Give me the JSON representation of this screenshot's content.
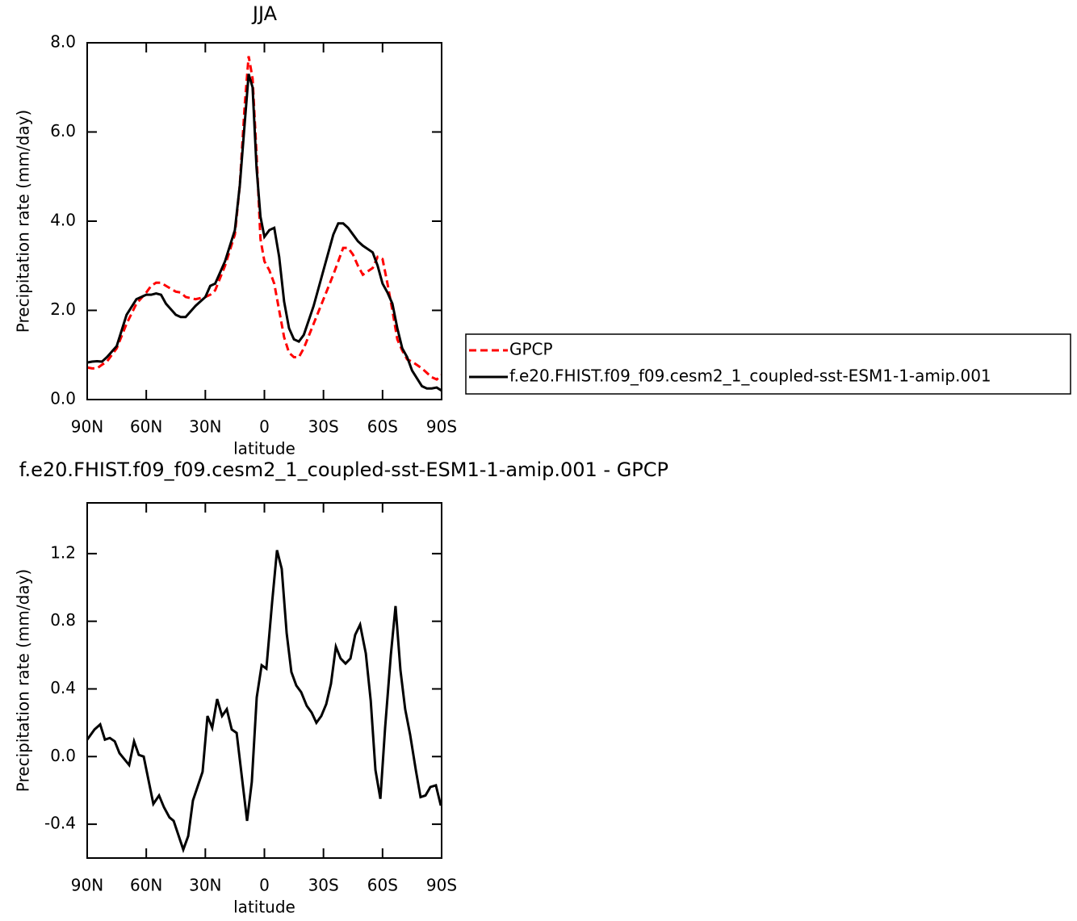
{
  "chart_data": [
    {
      "type": "line",
      "title": "JJA",
      "xlabel": "latitude",
      "ylabel": "Precipitation rate (mm/day)",
      "x": [
        90,
        87.5,
        85,
        82.5,
        80,
        75,
        70,
        65,
        60,
        57.5,
        55,
        52.5,
        50,
        45,
        42.5,
        40,
        35,
        30,
        27.5,
        25,
        20,
        15,
        12.5,
        10,
        8,
        6,
        4,
        2,
        0,
        -2.5,
        -5,
        -7.5,
        -10,
        -12.5,
        -15,
        -17.5,
        -20,
        -25,
        -30,
        -35,
        -37.5,
        -40,
        -42.5,
        -45,
        -47.5,
        -50,
        -55,
        -57.5,
        -60,
        -62.5,
        -65,
        -67.5,
        -70,
        -72.5,
        -75,
        -80,
        -82.5,
        -85,
        -87.5,
        -90
      ],
      "series": [
        {
          "name": "GPCP",
          "color": "#ff0000",
          "linestyle": "dashed",
          "values": [
            0.72,
            0.7,
            0.7,
            0.78,
            0.85,
            1.15,
            1.7,
            2.15,
            2.4,
            2.55,
            2.62,
            2.62,
            2.55,
            2.42,
            2.4,
            2.3,
            2.25,
            2.3,
            2.35,
            2.45,
            3.0,
            3.7,
            4.8,
            6.6,
            7.7,
            7.2,
            5.5,
            3.6,
            3.1,
            2.9,
            2.6,
            2.0,
            1.4,
            1.05,
            0.95,
            0.95,
            1.15,
            1.7,
            2.25,
            2.8,
            3.1,
            3.4,
            3.4,
            3.25,
            3.0,
            2.8,
            2.95,
            3.2,
            3.15,
            2.6,
            2.0,
            1.35,
            1.1,
            0.9,
            0.85,
            0.7,
            0.6,
            0.5,
            0.45,
            0.55
          ]
        },
        {
          "name": "f.e20.FHIST.f09_f09.cesm2_1_coupled-sst-ESM1-1-amip.001",
          "color": "#000000",
          "linestyle": "solid",
          "values": [
            0.83,
            0.85,
            0.86,
            0.85,
            0.95,
            1.2,
            1.9,
            2.25,
            2.35,
            2.35,
            2.38,
            2.35,
            2.15,
            1.9,
            1.85,
            1.85,
            2.1,
            2.3,
            2.55,
            2.6,
            3.1,
            3.8,
            4.8,
            6.2,
            7.3,
            7.0,
            5.2,
            4.1,
            3.65,
            3.8,
            3.85,
            3.2,
            2.2,
            1.6,
            1.35,
            1.3,
            1.45,
            2.1,
            2.9,
            3.7,
            3.95,
            3.95,
            3.85,
            3.7,
            3.55,
            3.45,
            3.3,
            3.0,
            2.6,
            2.4,
            2.15,
            1.6,
            1.15,
            0.95,
            0.65,
            0.3,
            0.25,
            0.25,
            0.27,
            0.2
          ]
        }
      ],
      "xlim": [
        90,
        -90
      ],
      "xticks": [
        {
          "value": 90,
          "label": "90N"
        },
        {
          "value": 60,
          "label": "60N"
        },
        {
          "value": 30,
          "label": "30N"
        },
        0,
        {
          "value": -30,
          "label": "30S"
        },
        {
          "value": -60,
          "label": "60S"
        },
        {
          "value": -90,
          "label": "90S"
        }
      ],
      "ylim": [
        0,
        8
      ],
      "yticks": [
        {
          "value": 0,
          "label": "0.0"
        },
        {
          "value": 2,
          "label": "2.0"
        },
        {
          "value": 4,
          "label": "4.0"
        },
        {
          "value": 6,
          "label": "6.0"
        },
        {
          "value": 8,
          "label": "8.0"
        }
      ],
      "legend": "right"
    },
    {
      "type": "line",
      "title": "f.e20.FHIST.f09_f09.cesm2_1_coupled-sst-ESM1-1-amip.001 - GPCP",
      "xlabel": "latitude",
      "ylabel": "Precipitation rate (mm/day)",
      "x": [
        90,
        86.3,
        83.4,
        81,
        78.5,
        76,
        73.6,
        68.7,
        66.2,
        63.8,
        61.3,
        56.4,
        53.5,
        51,
        48.2,
        46.1,
        41.2,
        38.7,
        36.3,
        31.4,
        28.9,
        26.5,
        24,
        21.5,
        19.1,
        16.6,
        14.1,
        8.8,
        6.4,
        3.9,
        1.4,
        -1,
        -3.9,
        -6.4,
        -8.8,
        -11.3,
        -13.7,
        -16.2,
        -18.7,
        -21.5,
        -24,
        -26.4,
        -28.9,
        -31.4,
        -33.8,
        -36.3,
        -38.7,
        -41.2,
        -43.7,
        -46.1,
        -48.6,
        -51.5,
        -54,
        -56.4,
        -58.9,
        -61.3,
        -64.2,
        -66.6,
        -69.1,
        -71.5,
        -74,
        -76.9,
        -79.3,
        -81.8,
        -84.3,
        -87.1,
        -89.6
      ],
      "values": [
        0.1,
        0.16,
        0.19,
        0.1,
        0.11,
        0.09,
        0.02,
        -0.05,
        0.09,
        0.01,
        0.0,
        -0.28,
        -0.23,
        -0.3,
        -0.36,
        -0.38,
        -0.55,
        -0.47,
        -0.26,
        -0.09,
        0.24,
        0.17,
        0.34,
        0.24,
        0.28,
        0.16,
        0.14,
        -0.38,
        -0.15,
        0.35,
        0.54,
        0.52,
        0.91,
        1.22,
        1.11,
        0.73,
        0.5,
        0.42,
        0.38,
        0.3,
        0.26,
        0.2,
        0.24,
        0.31,
        0.43,
        0.65,
        0.58,
        0.55,
        0.58,
        0.72,
        0.78,
        0.61,
        0.33,
        -0.08,
        -0.25,
        0.17,
        0.6,
        0.89,
        0.51,
        0.28,
        0.13,
        -0.08,
        -0.24,
        -0.23,
        -0.18,
        -0.17,
        -0.29
      ],
      "color": "#000000",
      "xlim": [
        90,
        -90
      ],
      "xticks": [
        {
          "value": 90,
          "label": "90N"
        },
        {
          "value": 60,
          "label": "60N"
        },
        {
          "value": 30,
          "label": "30N"
        },
        0,
        {
          "value": -30,
          "label": "30S"
        },
        {
          "value": -60,
          "label": "60S"
        },
        {
          "value": -90,
          "label": "90S"
        }
      ],
      "ylim": [
        -0.6,
        1.5
      ],
      "yticks": [
        -0.4,
        {
          "value": 0,
          "label": "0.0"
        },
        0.4,
        0.8,
        1.2
      ]
    }
  ]
}
